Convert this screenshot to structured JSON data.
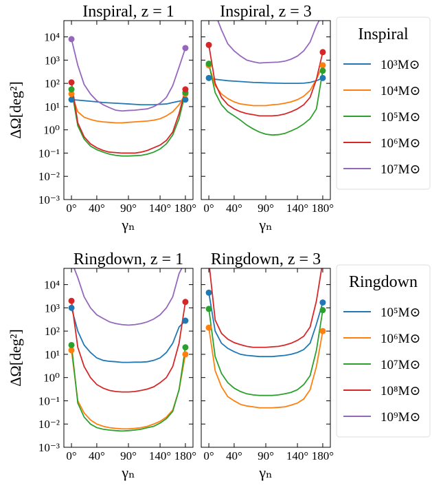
{
  "chart_data": [
    {
      "type": "line",
      "title": "Inspiral, z = 1",
      "ylabel": "ΔΩ[deg²]",
      "xlabel": "γₙ",
      "log_y": true,
      "x": [
        0,
        10,
        20,
        30,
        40,
        50,
        60,
        70,
        80,
        90,
        100,
        110,
        120,
        130,
        140,
        150,
        160,
        170,
        180
      ],
      "xlim": [
        -12,
        192
      ],
      "ylim": [
        0.001,
        50000
      ],
      "xticks": [
        {
          "value": 0,
          "label": "0°"
        },
        {
          "value": 40,
          "label": "40°"
        },
        {
          "value": 90,
          "label": "90°"
        },
        {
          "value": 140,
          "label": "140°"
        },
        {
          "value": 180,
          "label": "180°"
        }
      ],
      "yticks": [
        {
          "value": 0.001,
          "label": "10⁻³"
        },
        {
          "value": 0.01,
          "label": "10⁻²"
        },
        {
          "value": 0.1,
          "label": "10⁻¹"
        },
        {
          "value": 1,
          "label": "10⁰"
        },
        {
          "value": 10,
          "label": "10¹"
        },
        {
          "value": 100,
          "label": "10²"
        },
        {
          "value": 1000,
          "label": "10³"
        },
        {
          "value": 10000,
          "label": "10⁴"
        }
      ],
      "series": [
        {
          "color": "#1f77b4",
          "values": [
            20,
            19,
            18,
            17,
            16,
            15,
            14.5,
            14,
            13.5,
            13,
            12.5,
            12,
            12,
            12,
            12.5,
            13,
            15,
            17,
            20
          ]
        },
        {
          "color": "#ff7f0e",
          "values": [
            35,
            6,
            3.5,
            2.8,
            2.4,
            2.2,
            2.1,
            2.0,
            2.0,
            2.1,
            2.2,
            2.3,
            2.4,
            2.6,
            3,
            4,
            6,
            12,
            35
          ]
        },
        {
          "color": "#2ca02c",
          "values": [
            55,
            1.5,
            0.4,
            0.2,
            0.14,
            0.11,
            0.09,
            0.08,
            0.075,
            0.075,
            0.077,
            0.08,
            0.09,
            0.11,
            0.15,
            0.25,
            0.6,
            3,
            40
          ]
        },
        {
          "color": "#d62728",
          "values": [
            110,
            2,
            0.5,
            0.25,
            0.17,
            0.13,
            0.11,
            0.105,
            0.1,
            0.1,
            0.1,
            0.11,
            0.13,
            0.17,
            0.22,
            0.35,
            0.8,
            5,
            55
          ]
        },
        {
          "color": "#9467bd",
          "values": [
            8000,
            600,
            90,
            35,
            18,
            12,
            9,
            7,
            6.5,
            6.8,
            7,
            7.5,
            8,
            10,
            14,
            25,
            80,
            500,
            3300
          ]
        }
      ]
    },
    {
      "type": "line",
      "title": "Inspiral, z = 3",
      "xlabel": "γₙ",
      "log_y": true,
      "legend_title": "Inspiral",
      "legend": "outside right",
      "x": [
        0,
        10,
        20,
        30,
        40,
        50,
        60,
        70,
        80,
        90,
        100,
        110,
        120,
        130,
        140,
        150,
        160,
        170,
        180
      ],
      "xlim": [
        -12,
        192
      ],
      "ylim": [
        0.001,
        50000
      ],
      "xticks": [
        {
          "value": 0,
          "label": "0°"
        },
        {
          "value": 40,
          "label": "40°"
        },
        {
          "value": 90,
          "label": "90°"
        },
        {
          "value": 140,
          "label": "140°"
        },
        {
          "value": 180,
          "label": "180°"
        }
      ],
      "yticks": [
        0.001,
        0.01,
        0.1,
        1,
        10,
        100,
        1000,
        10000
      ],
      "series": [
        {
          "name": "10³M⊙",
          "color": "#1f77b4",
          "values": [
            170,
            150,
            140,
            130,
            125,
            120,
            115,
            110,
            108,
            105,
            103,
            102,
            100,
            100,
            100,
            102,
            110,
            130,
            170
          ]
        },
        {
          "name": "10⁴M⊙",
          "color": "#ff7f0e",
          "values": [
            600,
            80,
            35,
            22,
            16,
            13,
            12,
            11,
            11,
            11,
            12,
            12.5,
            14,
            16,
            20,
            28,
            50,
            150,
            600
          ]
        },
        {
          "name": "10⁵M⊙",
          "color": "#2ca02c",
          "values": [
            700,
            40,
            12,
            6,
            4,
            2.6,
            1.6,
            1.1,
            0.8,
            0.65,
            0.6,
            0.62,
            0.7,
            0.9,
            1.2,
            1.8,
            3,
            8,
            350
          ]
        },
        {
          "name": "10⁶M⊙",
          "color": "#d62728",
          "values": [
            4500,
            100,
            25,
            12,
            8,
            6,
            5,
            4.5,
            4,
            4,
            4,
            4.2,
            4.8,
            6,
            8,
            12,
            25,
            150,
            2200
          ]
        },
        {
          "name": "10⁷M⊙",
          "color": "#9467bd",
          "values": [
            100000,
            100000,
            20000,
            5000,
            2500,
            1500,
            1000,
            850,
            750,
            780,
            800,
            820,
            900,
            1100,
            1500,
            2500,
            6000,
            30000,
            100000
          ]
        }
      ]
    },
    {
      "type": "line",
      "title": "Ringdown, z = 1",
      "ylabel": "ΔΩ[deg²]",
      "xlabel": "γₙ",
      "log_y": true,
      "x": [
        0,
        10,
        20,
        30,
        40,
        50,
        60,
        70,
        80,
        90,
        100,
        110,
        120,
        130,
        140,
        150,
        160,
        170,
        180
      ],
      "xlim": [
        -12,
        192
      ],
      "ylim": [
        0.001,
        50000
      ],
      "xticks": [
        {
          "value": 0,
          "label": "0°"
        },
        {
          "value": 40,
          "label": "40°"
        },
        {
          "value": 90,
          "label": "90°"
        },
        {
          "value": 140,
          "label": "140°"
        },
        {
          "value": 180,
          "label": "180°"
        }
      ],
      "yticks": [
        {
          "value": 0.001,
          "label": "10⁻³"
        },
        {
          "value": 0.01,
          "label": "10⁻²"
        },
        {
          "value": 0.1,
          "label": "10⁻¹"
        },
        {
          "value": 1,
          "label": "10⁰"
        },
        {
          "value": 10,
          "label": "10¹"
        },
        {
          "value": 100,
          "label": "10²"
        },
        {
          "value": 1000,
          "label": "10³"
        },
        {
          "value": 10000,
          "label": "10⁴"
        }
      ],
      "series": [
        {
          "color": "#1f77b4",
          "values": [
            1000,
            100,
            25,
            12,
            7,
            5.5,
            5,
            4.8,
            4.5,
            4.5,
            4.6,
            4.6,
            4.8,
            5.5,
            7,
            12,
            30,
            150,
            280
          ]
        },
        {
          "color": "#ff7f0e",
          "values": [
            15,
            0.1,
            0.03,
            0.015,
            0.01,
            0.008,
            0.007,
            0.0065,
            0.0062,
            0.0062,
            0.0065,
            0.007,
            0.008,
            0.01,
            0.013,
            0.02,
            0.04,
            0.3,
            10
          ]
        },
        {
          "color": "#2ca02c",
          "values": [
            25,
            0.08,
            0.02,
            0.01,
            0.007,
            0.006,
            0.0055,
            0.0052,
            0.005,
            0.0052,
            0.0055,
            0.006,
            0.007,
            0.008,
            0.011,
            0.017,
            0.035,
            0.3,
            20
          ]
        },
        {
          "color": "#d62728",
          "values": [
            2000,
            20,
            3,
            1,
            0.5,
            0.35,
            0.28,
            0.25,
            0.24,
            0.24,
            0.25,
            0.28,
            0.32,
            0.4,
            0.6,
            1,
            3,
            30,
            1800
          ]
        },
        {
          "color": "#9467bd",
          "values": [
            100000,
            20000,
            3000,
            1000,
            500,
            350,
            250,
            210,
            190,
            180,
            190,
            210,
            250,
            330,
            500,
            1000,
            3000,
            30000,
            100000
          ]
        }
      ]
    },
    {
      "type": "line",
      "title": "Ringdown, z = 3",
      "xlabel": "γₙ",
      "log_y": true,
      "legend_title": "Ringdown",
      "legend": "outside right",
      "x": [
        0,
        10,
        20,
        30,
        40,
        50,
        60,
        70,
        80,
        90,
        100,
        110,
        120,
        130,
        140,
        150,
        160,
        170,
        180
      ],
      "xlim": [
        -12,
        192
      ],
      "ylim": [
        0.001,
        50000
      ],
      "xticks": [
        {
          "value": 0,
          "label": "0°"
        },
        {
          "value": 40,
          "label": "40°"
        },
        {
          "value": 90,
          "label": "90°"
        },
        {
          "value": 140,
          "label": "140°"
        },
        {
          "value": 180,
          "label": "180°"
        }
      ],
      "yticks": [
        0.001,
        0.01,
        0.1,
        1,
        10,
        100,
        1000,
        10000
      ],
      "series": [
        {
          "name": "10⁵M⊙",
          "color": "#1f77b4",
          "values": [
            4500,
            100,
            30,
            18,
            13,
            10,
            9,
            8.5,
            8,
            8,
            8,
            8.5,
            9,
            10,
            12,
            16,
            30,
            200,
            1700
          ]
        },
        {
          "name": "10⁶M⊙",
          "color": "#ff7f0e",
          "values": [
            140,
            2,
            0.4,
            0.15,
            0.1,
            0.07,
            0.06,
            0.055,
            0.05,
            0.05,
            0.05,
            0.052,
            0.055,
            0.065,
            0.08,
            0.12,
            0.3,
            3,
            100
          ]
        },
        {
          "name": "10⁷M⊙",
          "color": "#2ca02c",
          "values": [
            900,
            8,
            1.5,
            0.6,
            0.35,
            0.25,
            0.2,
            0.18,
            0.17,
            0.17,
            0.17,
            0.18,
            0.2,
            0.23,
            0.3,
            0.5,
            1.2,
            15,
            800
          ]
        },
        {
          "name": "10⁸M⊙",
          "color": "#d62728",
          "values": [
            100000,
            300,
            80,
            45,
            32,
            26,
            22,
            20,
            20,
            20,
            21,
            22,
            25,
            30,
            40,
            60,
            150,
            2000,
            100000
          ]
        },
        {
          "name": "10⁹M⊙",
          "color": "#9467bd",
          "values": [
            null,
            null,
            null,
            null,
            null,
            null,
            null,
            null,
            null,
            null,
            null,
            null,
            null,
            null,
            null,
            null,
            null,
            null,
            null
          ]
        }
      ]
    }
  ]
}
